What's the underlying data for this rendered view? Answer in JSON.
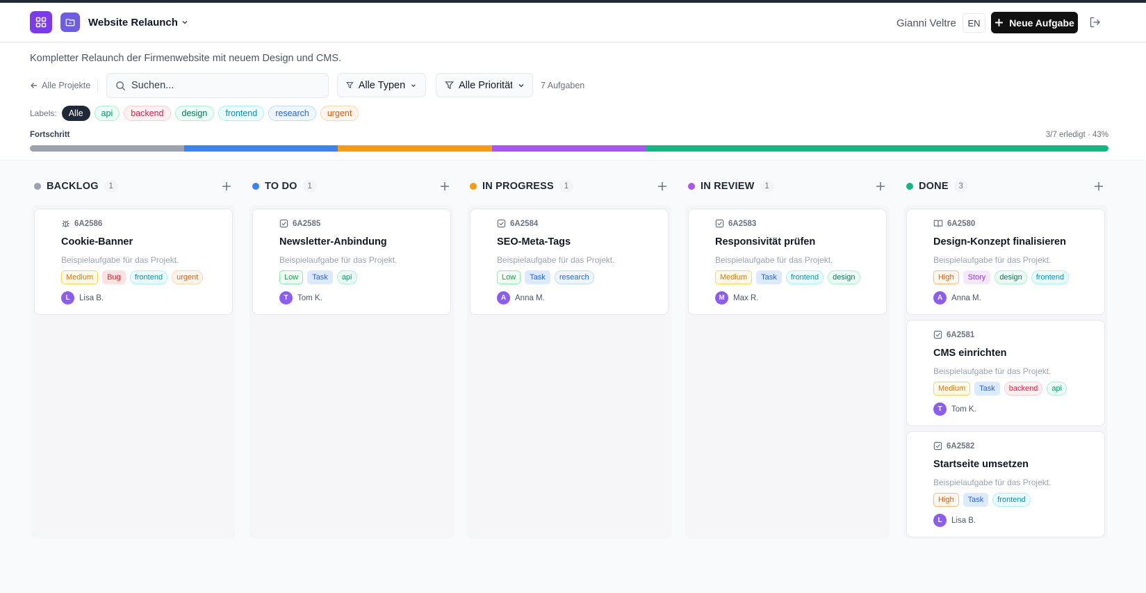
{
  "header": {
    "project_name": "Website Relaunch",
    "user_name": "Gianni Veltre",
    "lang": "EN",
    "new_task_label": "Neue Aufgabe",
    "icons": {
      "app": "dashboard-grid-icon",
      "project": "folder-icon",
      "logout": "logout-icon"
    }
  },
  "subbar": {
    "description": "Kompletter Relaunch der Firmenwebsite mit neuem Design und CMS.",
    "back_label": "Alle Projekte",
    "search_placeholder": "Suchen...",
    "type_filter": "Alle Typen",
    "priority_filter": "Alle Prioritäten",
    "task_count": "7 Aufgaben",
    "labels_title": "Labels:",
    "labels": [
      {
        "name": "Alle",
        "active": true
      },
      {
        "name": "api"
      },
      {
        "name": "backend"
      },
      {
        "name": "design"
      },
      {
        "name": "frontend"
      },
      {
        "name": "research"
      },
      {
        "name": "urgent"
      }
    ],
    "progress_label": "Fortschritt",
    "progress_text": "3/7 erledigt · 43%",
    "progress_segments": [
      {
        "status": "backlog",
        "count": 1,
        "color": "#9ca3af"
      },
      {
        "status": "todo",
        "count": 1,
        "color": "#3b82f6"
      },
      {
        "status": "inprogress",
        "count": 1,
        "color": "#f59e0b"
      },
      {
        "status": "review",
        "count": 1,
        "color": "#a855f7"
      },
      {
        "status": "done",
        "count": 3,
        "color": "#10b981"
      }
    ]
  },
  "colors": {
    "backlog": "#9ca3af",
    "todo": "#3b82f6",
    "inprogress": "#f59e0b",
    "review": "#a855f7",
    "done": "#10b981"
  },
  "columns": [
    {
      "key": "backlog",
      "title": "BACKLOG",
      "count": "1",
      "cards": [
        {
          "id": "6A2586",
          "type_icon": "bug-icon",
          "title": "Cookie-Banner",
          "desc": "Beispielaufgabe für das Projekt.",
          "tags": [
            "Medium",
            "Bug",
            "frontend",
            "urgent"
          ],
          "avatar": "L",
          "user": "Lisa B."
        }
      ]
    },
    {
      "key": "todo",
      "title": "TO DO",
      "count": "1",
      "cards": [
        {
          "id": "6A2585",
          "type_icon": "checkbox-icon",
          "title": "Newsletter-Anbindung",
          "desc": "Beispielaufgabe für das Projekt.",
          "tags": [
            "Low",
            "Task",
            "api"
          ],
          "avatar": "T",
          "user": "Tom K."
        }
      ]
    },
    {
      "key": "inprogress",
      "title": "IN PROGRESS",
      "count": "1",
      "cards": [
        {
          "id": "6A2584",
          "type_icon": "checkbox-icon",
          "title": "SEO-Meta-Tags",
          "desc": "Beispielaufgabe für das Projekt.",
          "tags": [
            "Low",
            "Task",
            "research"
          ],
          "avatar": "A",
          "user": "Anna M."
        }
      ]
    },
    {
      "key": "review",
      "title": "IN REVIEW",
      "count": "1",
      "cards": [
        {
          "id": "6A2583",
          "type_icon": "checkbox-icon",
          "title": "Responsivität prüfen",
          "desc": "Beispielaufgabe für das Projekt.",
          "tags": [
            "Medium",
            "Task",
            "frontend",
            "design"
          ],
          "avatar": "M",
          "user": "Max R."
        }
      ]
    },
    {
      "key": "done",
      "title": "DONE",
      "count": "3",
      "cards": [
        {
          "id": "6A2580",
          "type_icon": "book-icon",
          "title": "Design-Konzept finalisieren",
          "desc": "Beispielaufgabe für das Projekt.",
          "tags": [
            "High",
            "Story",
            "design",
            "frontend"
          ],
          "avatar": "A",
          "user": "Anna M."
        },
        {
          "id": "6A2581",
          "type_icon": "checkbox-icon",
          "title": "CMS einrichten",
          "desc": "Beispielaufgabe für das Projekt.",
          "tags": [
            "Medium",
            "Task",
            "backend",
            "api"
          ],
          "avatar": "T",
          "user": "Tom K."
        },
        {
          "id": "6A2582",
          "type_icon": "checkbox-icon",
          "title": "Startseite umsetzen",
          "desc": "Beispielaufgabe für das Projekt.",
          "tags": [
            "High",
            "Task",
            "frontend"
          ],
          "avatar": "L",
          "user": "Lisa B."
        }
      ]
    }
  ]
}
